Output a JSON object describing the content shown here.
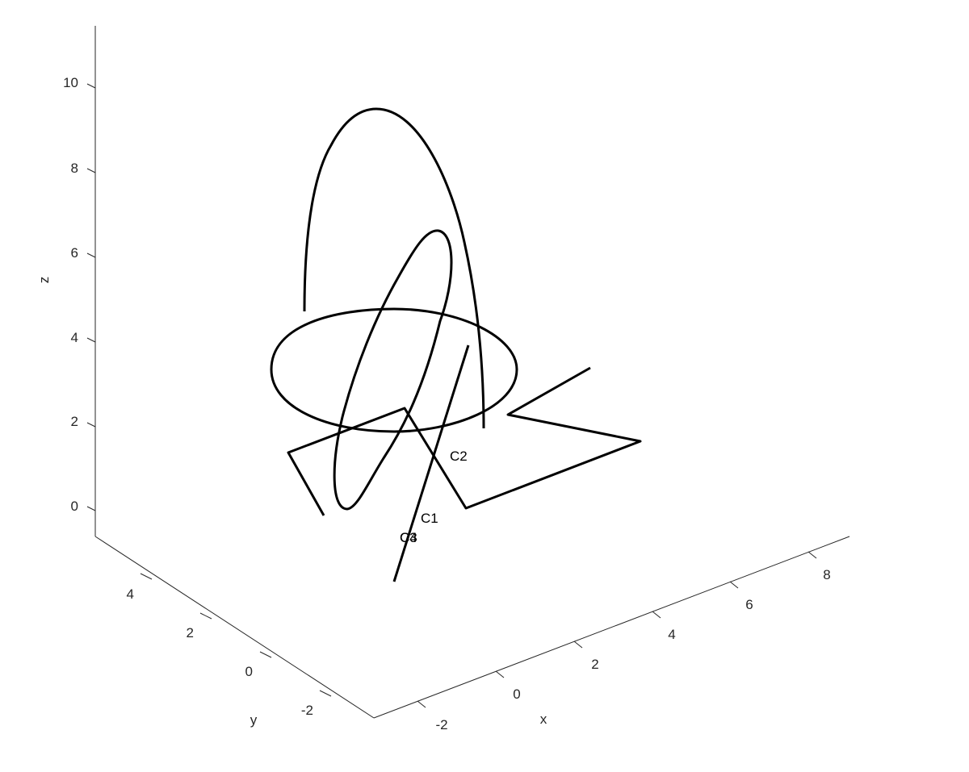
{
  "chart_data": {
    "type": "line3d",
    "title": "",
    "axes": {
      "x": {
        "label": "x",
        "ticks": [
          "-2",
          "0",
          "2",
          "4",
          "6",
          "8"
        ]
      },
      "y": {
        "label": "y",
        "ticks": [
          "-2",
          "0",
          "2",
          "4"
        ]
      },
      "z": {
        "label": "z",
        "ticks": [
          "0",
          "2",
          "4",
          "6",
          "8",
          "10"
        ]
      }
    },
    "curve_labels": [
      {
        "text": "C1"
      },
      {
        "text": "C2"
      },
      {
        "text": "C3"
      },
      {
        "text": "C4"
      }
    ],
    "grid": false,
    "series": [
      {
        "kind": "line"
      },
      {
        "kind": "polyline"
      },
      {
        "kind": "ellipse"
      },
      {
        "kind": "ellipse"
      },
      {
        "kind": "arc"
      }
    ],
    "colors": {
      "line": "#000000",
      "axis": "#262626"
    }
  }
}
